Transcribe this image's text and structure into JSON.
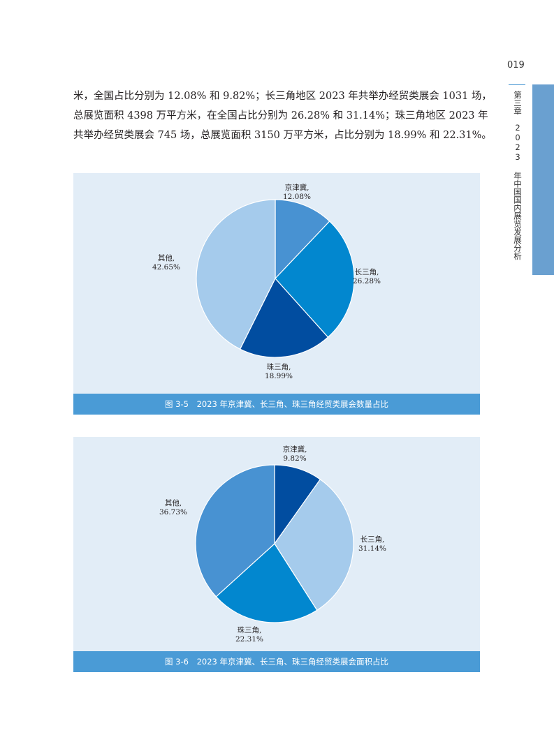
{
  "page": {
    "number": "019",
    "chapter": "第三章　2023 年中国国内展览发展分析"
  },
  "body_text": {
    "lines": [
      "米，全国占比分别为 12.08% 和 9.82%；长三角地区 2023 年共举办经贸类展会 1031 场，",
      "总展览面积 4398 万平方米，在全国占比分别为 26.28% 和 31.14%；珠三角地区 2023 年",
      "共举办经贸类展会 745 场，总展览面积 3150 万平方米，占比分别为 18.99% 和 22.31%。"
    ]
  },
  "figures": [
    {
      "number": "图 3-5",
      "title": "2023 年京津冀、长三角、珠三角经贸类展会数量占比"
    },
    {
      "number": "图 3-6",
      "title": "2023 年京津冀、长三角、珠三角经贸类展会面积占比"
    }
  ],
  "chart_data": [
    {
      "type": "pie",
      "title": "",
      "slices": [
        {
          "label": "京津冀,",
          "value": 12.08,
          "value_label": "12.08%",
          "color": "#4892d2"
        },
        {
          "label": "长三角,",
          "value": 26.28,
          "value_label": "26.28%",
          "color": "#0287cf"
        },
        {
          "label": "珠三角,",
          "value": 18.99,
          "value_label": "18.99%",
          "color": "#014da0"
        },
        {
          "label": "其他,",
          "value": 42.65,
          "value_label": "42.65%",
          "color": "#a5cbec"
        }
      ]
    },
    {
      "type": "pie",
      "title": "",
      "slices": [
        {
          "label": "京津冀,",
          "value": 9.82,
          "value_label": "9.82%",
          "color": "#014da0"
        },
        {
          "label": "长三角,",
          "value": 31.14,
          "value_label": "31.14%",
          "color": "#a5cbec"
        },
        {
          "label": "珠三角,",
          "value": 22.31,
          "value_label": "22.31%",
          "color": "#0287cf"
        },
        {
          "label": "其他,",
          "value": 36.73,
          "value_label": "36.73%",
          "color": "#4892d2"
        }
      ]
    }
  ]
}
